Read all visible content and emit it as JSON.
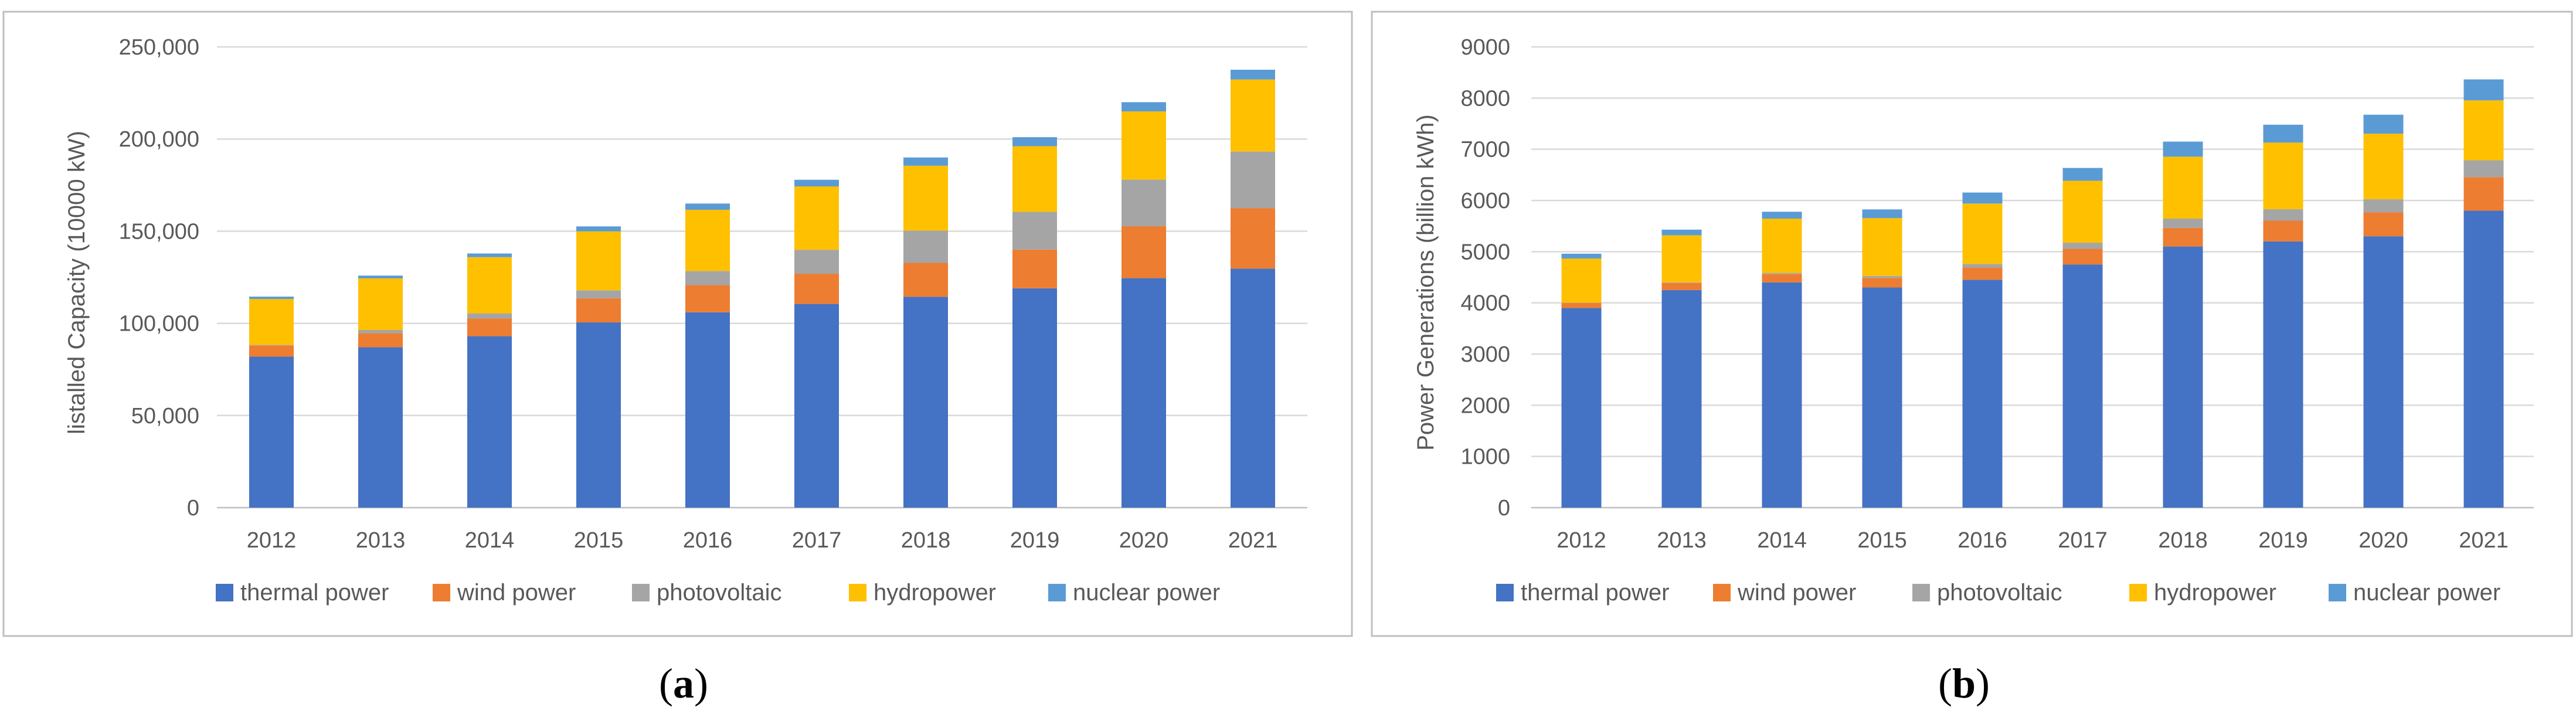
{
  "colors": {
    "thermal": "#4472C4",
    "wind": "#ED7D31",
    "photovoltaic": "#A5A5A5",
    "hydro": "#FFC000",
    "nuclear": "#5B9BD5",
    "grid": "#D9D9D9",
    "frame": "#BFBFBF"
  },
  "chart_data": [
    {
      "panel": "a",
      "label": {
        "open": "(",
        "letter": "a",
        "close": ")"
      },
      "type": "bar",
      "stacked": true,
      "title": "",
      "xlabel": "",
      "ylabel": "listalled Capacity (10000 kW)",
      "ylim": [
        0,
        250000
      ],
      "yticks": [
        "0",
        "50,000",
        "100,000",
        "150,000",
        "200,000",
        "250,000"
      ],
      "ytick_values": [
        0,
        50000,
        100000,
        150000,
        200000,
        250000
      ],
      "grid": true,
      "legend_position": "bottom",
      "categories": [
        "2012",
        "2013",
        "2014",
        "2015",
        "2016",
        "2017",
        "2018",
        "2019",
        "2020",
        "2021"
      ],
      "series": [
        {
          "name": "thermal power",
          "color_key": "thermal",
          "values": [
            81900,
            87000,
            93000,
            100500,
            106000,
            110500,
            114400,
            119000,
            124500,
            129700
          ]
        },
        {
          "name": "wind power",
          "color_key": "wind",
          "values": [
            6100,
            7600,
            9600,
            13100,
            14700,
            16400,
            18400,
            21000,
            28200,
            32800
          ]
        },
        {
          "name": "photovoltaic",
          "color_key": "photovoltaic",
          "values": [
            300,
            1800,
            2800,
            4300,
            7700,
            13000,
            17500,
            20500,
            25300,
            30700
          ]
        },
        {
          "name": "hydropower",
          "color_key": "hydro",
          "values": [
            24900,
            28000,
            30500,
            32000,
            33200,
            34400,
            35200,
            35600,
            37000,
            39100
          ]
        },
        {
          "name": "nuclear power",
          "color_key": "nuclear",
          "values": [
            1300,
            1500,
            2000,
            2700,
            3400,
            3600,
            4500,
            4900,
            5000,
            5300
          ]
        }
      ]
    },
    {
      "panel": "b",
      "label": {
        "open": "(",
        "letter": "b",
        "close": ")"
      },
      "type": "bar",
      "stacked": true,
      "title": "",
      "xlabel": "",
      "ylabel": "Power Generations (billion kWh)",
      "ylim": [
        0,
        9000
      ],
      "yticks": [
        "0",
        "1000",
        "2000",
        "3000",
        "4000",
        "5000",
        "6000",
        "7000",
        "8000",
        "9000"
      ],
      "ytick_values": [
        0,
        1000,
        2000,
        3000,
        4000,
        5000,
        6000,
        7000,
        8000,
        9000
      ],
      "grid": true,
      "legend_position": "bottom",
      "categories": [
        "2012",
        "2013",
        "2014",
        "2015",
        "2016",
        "2017",
        "2018",
        "2019",
        "2020",
        "2021"
      ],
      "series": [
        {
          "name": "thermal power",
          "color_key": "thermal",
          "values": [
            3900,
            4250,
            4400,
            4300,
            4450,
            4750,
            5100,
            5200,
            5300,
            5800
          ]
        },
        {
          "name": "wind power",
          "color_key": "wind",
          "values": [
            100,
            140,
            160,
            185,
            240,
            305,
            365,
            405,
            465,
            655
          ]
        },
        {
          "name": "photovoltaic",
          "color_key": "photovoltaic",
          "values": [
            5,
            10,
            25,
            40,
            70,
            120,
            180,
            225,
            260,
            330
          ]
        },
        {
          "name": "hydropower",
          "color_key": "hydro",
          "values": [
            860,
            920,
            1060,
            1130,
            1180,
            1210,
            1210,
            1300,
            1280,
            1170
          ]
        },
        {
          "name": "nuclear power",
          "color_key": "nuclear",
          "values": [
            95,
            110,
            135,
            170,
            215,
            250,
            295,
            350,
            370,
            410
          ]
        }
      ]
    }
  ]
}
